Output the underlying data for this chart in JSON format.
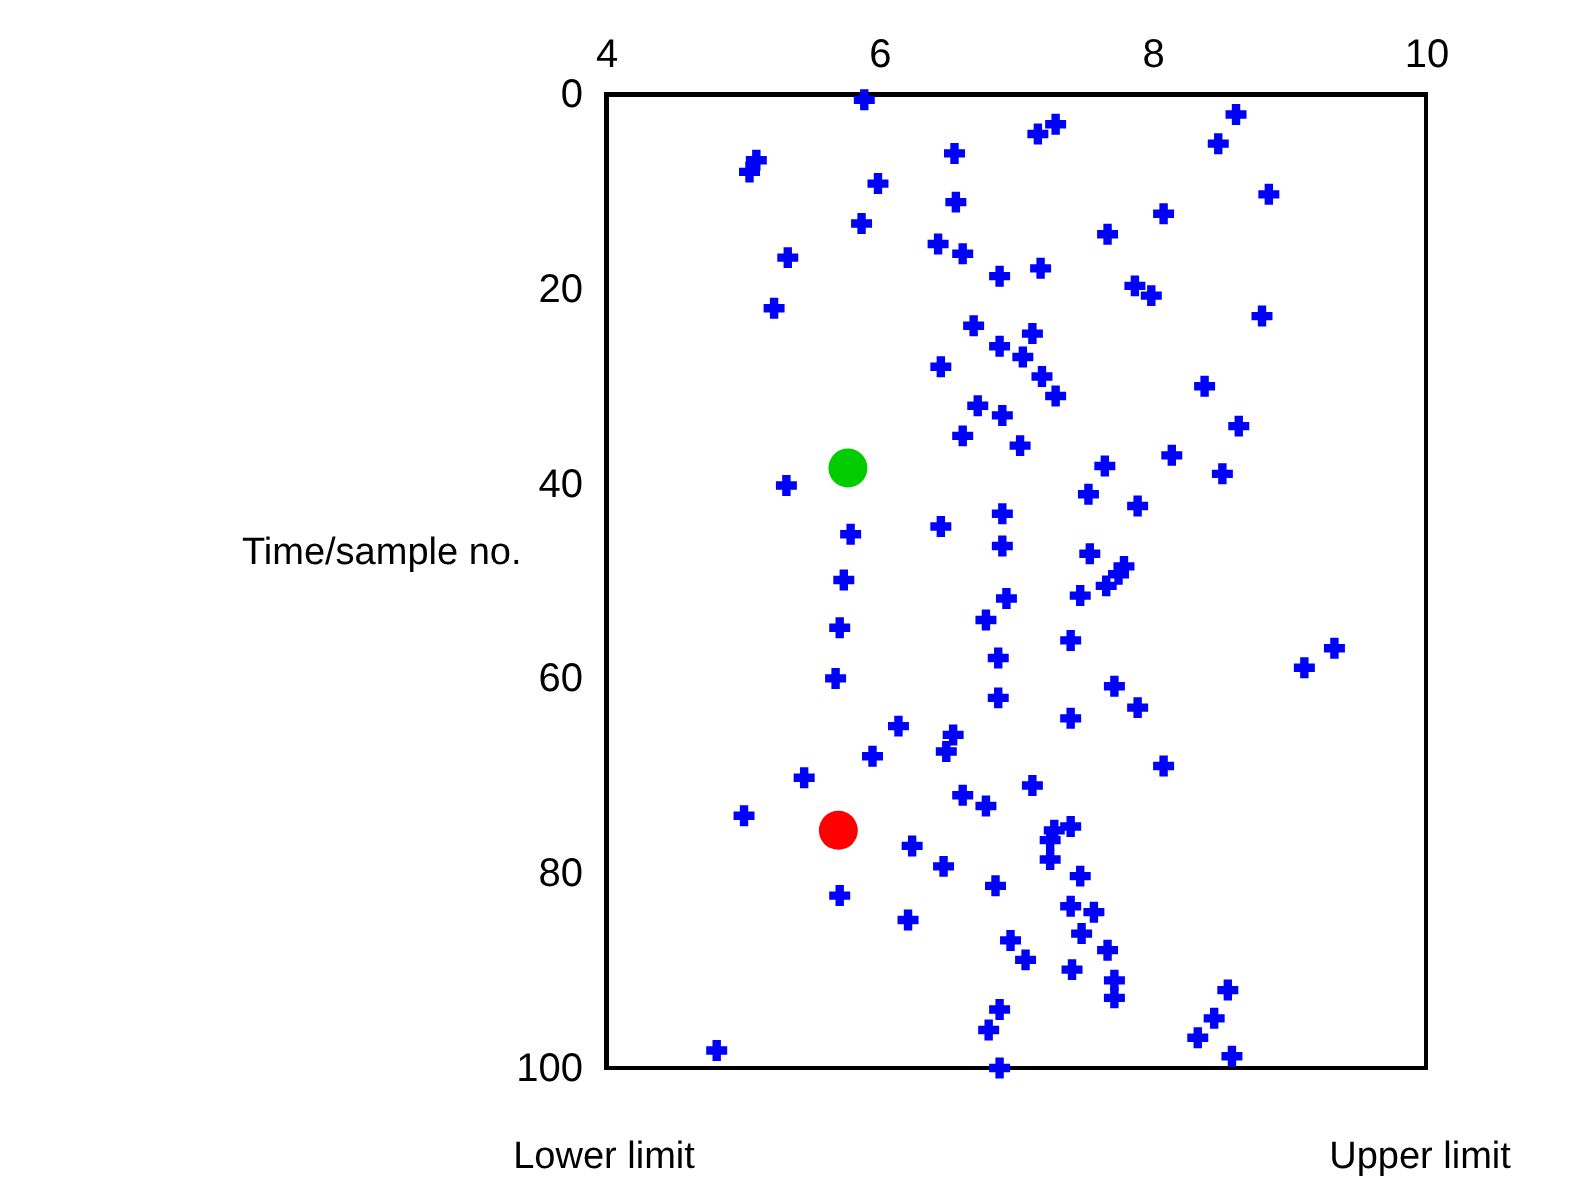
{
  "chart_data": {
    "type": "scatter",
    "ylabel": "Time/sample no.",
    "annotations": [
      "Lower limit",
      "Upper limit"
    ],
    "xlim": [
      4,
      10
    ],
    "xticks": [
      4,
      6,
      8,
      10
    ],
    "ylim": [
      100,
      0
    ],
    "yticks": [
      0,
      20,
      40,
      60,
      80,
      100
    ],
    "grid": false,
    "marker": "cross",
    "series": [
      {
        "color": "#0000ff",
        "x": [
          5.89,
          5.1,
          5.05,
          5.99,
          5.87,
          5.33,
          5.23,
          6.55,
          6.56,
          6.43,
          6.61,
          6.88,
          7.18,
          7.16,
          7.29,
          7.67,
          8.08,
          7.87,
          7.99,
          8.48,
          8.61,
          8.85,
          8.8,
          6.69,
          6.88,
          7.12,
          7.05,
          6.45,
          7.19,
          7.29,
          6.72,
          6.9,
          6.61,
          7.03,
          8.38,
          8.63,
          8.14,
          7.65,
          8.51,
          7.53,
          7.89,
          5.32,
          5.79,
          5.74,
          6.45,
          6.9,
          6.9,
          7.54,
          7.79,
          7.75,
          7.66,
          6.93,
          7.47,
          5.71,
          5.68,
          6.78,
          6.87,
          6.87,
          7.4,
          9.33,
          9.11,
          7.72,
          7.89,
          7.4,
          6.14,
          6.54,
          6.49,
          5.95,
          8.08,
          5.45,
          7.12,
          6.61,
          6.78,
          5.01,
          7.4,
          7.28,
          7.25,
          7.25,
          6.24,
          6.47,
          7.47,
          6.85,
          5.71,
          7.4,
          7.57,
          7.48,
          6.21,
          6.96,
          7.07,
          7.41,
          7.67,
          7.72,
          7.72,
          8.55,
          8.45,
          8.33,
          6.88,
          6.8,
          8.58,
          4.81,
          6.88
        ],
        "values": [
          0.6,
          6.8,
          8,
          9.2,
          13.3,
          16.8,
          22,
          6.1,
          11.1,
          15.4,
          16.4,
          18.7,
          17.9,
          4.1,
          3.1,
          14.4,
          12.3,
          19.7,
          20.7,
          5.1,
          2.1,
          10.3,
          22.8,
          23.8,
          25.9,
          24.6,
          27,
          28,
          29,
          31,
          32,
          33,
          35.1,
          36.1,
          30,
          34.1,
          37.1,
          38.2,
          39,
          41.1,
          42.3,
          40.2,
          45.2,
          49.9,
          44.4,
          43.1,
          46.4,
          47.2,
          48.5,
          49.3,
          50.5,
          51.8,
          51.5,
          54.8,
          60,
          54,
          57.9,
          62,
          56.1,
          56.9,
          58.9,
          60.8,
          63,
          64.1,
          64.9,
          65.8,
          67.5,
          68,
          69,
          70.2,
          71,
          72,
          73.1,
          74.1,
          75.2,
          75.6,
          76.6,
          78.6,
          77.2,
          79.3,
          80.3,
          81.3,
          82.3,
          83.4,
          84,
          86.2,
          84.8,
          86.9,
          88.9,
          89.9,
          87.9,
          91,
          92.8,
          92,
          94.9,
          96.9,
          94,
          96.1,
          98.8,
          98.2,
          100
        ]
      },
      {
        "color": "#00cc00",
        "marker": "circle",
        "x": [
          5.77
        ],
        "values": [
          38.4
        ]
      },
      {
        "color": "#ff0000",
        "marker": "circle",
        "x": [
          5.7
        ],
        "values": [
          75.6
        ]
      }
    ]
  }
}
